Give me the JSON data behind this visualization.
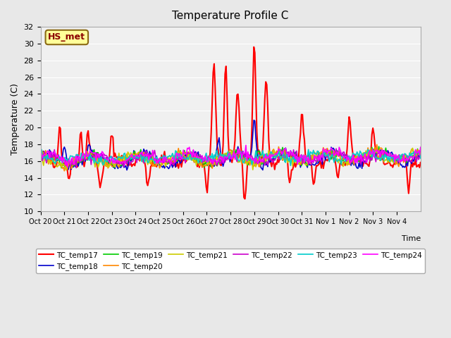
{
  "title": "Temperature Profile C",
  "xlabel": "Time",
  "ylabel": "Temperature (C)",
  "ylim": [
    10,
    32
  ],
  "yticks": [
    10,
    12,
    14,
    16,
    18,
    20,
    22,
    24,
    26,
    28,
    30,
    32
  ],
  "xtick_labels": [
    "Oct 20",
    "Oct 21",
    "Oct 22",
    "Oct 23",
    "Oct 24",
    "Oct 25",
    "Oct 26",
    "Oct 27",
    "Oct 28",
    "Oct 29",
    "Oct 30",
    "Oct 31",
    "Nov 1",
    "Nov 2",
    "Nov 3",
    "Nov 4"
  ],
  "annotation_text": "HS_met",
  "annotation_color": "#8B0000",
  "annotation_bg": "#FFFF99",
  "annotation_border": "#8B6914",
  "series_names": [
    "TC_temp17",
    "TC_temp18",
    "TC_temp19",
    "TC_temp20",
    "TC_temp21",
    "TC_temp22",
    "TC_temp23",
    "TC_temp24"
  ],
  "series_colors": [
    "#FF0000",
    "#0000CC",
    "#00CC00",
    "#FF8800",
    "#CCCC00",
    "#CC00CC",
    "#00CCCC",
    "#FF00FF"
  ],
  "series_lws": [
    1.5,
    1.2,
    1.2,
    1.2,
    1.2,
    1.2,
    1.2,
    1.2
  ],
  "background_color": "#E8E8E8",
  "plot_bg": "#F0F0F0"
}
